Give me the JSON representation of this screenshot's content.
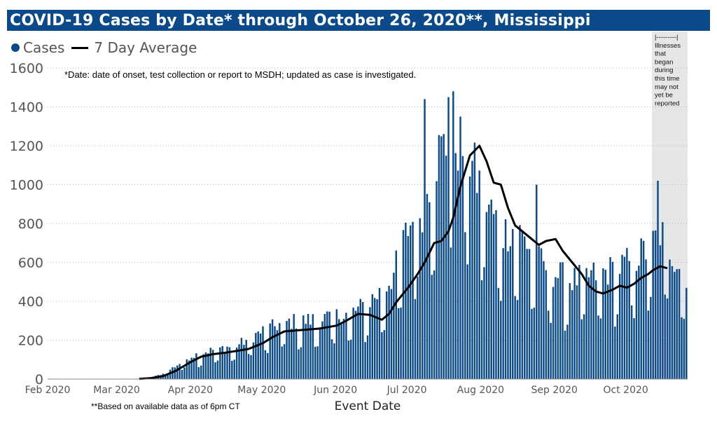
{
  "title": "COVID-19 Cases by Date* through October 26, 2020**, Mississippi",
  "legend": {
    "cases": "Cases",
    "avg": "7 Day Average"
  },
  "note_top": "*Date: date of onset, test collection or report to MSDH; updated as case is investigated.",
  "note_bottom": "**Based on available data as of 6pm CT",
  "shaded_note": [
    "|---------|",
    "Illnesses",
    "that",
    "began",
    "during",
    "this time",
    "may not",
    "yet be",
    "reported"
  ],
  "colors": {
    "bar": "#0b4a8a",
    "line": "#000000",
    "title_bg": "#0b4a8a",
    "shade": "#e6e6e6"
  },
  "chart_data": {
    "type": "bar",
    "xlabel": "Event Date",
    "ylabel": "",
    "ylim": [
      0,
      1600
    ],
    "y_ticks": [
      "0",
      "200",
      "400",
      "600",
      "800",
      "1000",
      "1200",
      "1400",
      "1600"
    ],
    "x_ticks": [
      "Feb 2020",
      "Mar 2020",
      "Apr 2020",
      "May 2020",
      "Jun 2020",
      "Jul 2020",
      "Aug 2020",
      "Sep 2020",
      "Oct 2020"
    ],
    "x_start": "2020-02-01",
    "x_end": "2020-10-26",
    "shaded_from": "2020-10-12",
    "grid": true,
    "legend_position": "top-left",
    "series": [
      {
        "name": "Cases",
        "kind": "bar",
        "anchors": [
          [
            "2020-02-01",
            0
          ],
          [
            "2020-03-10",
            2
          ],
          [
            "2020-03-15",
            8
          ],
          [
            "2020-03-20",
            25
          ],
          [
            "2020-03-25",
            60
          ],
          [
            "2020-04-01",
            110
          ],
          [
            "2020-04-10",
            140
          ],
          [
            "2020-04-20",
            160
          ],
          [
            "2020-05-01",
            230
          ],
          [
            "2020-05-10",
            270
          ],
          [
            "2020-05-20",
            280
          ],
          [
            "2020-06-01",
            300
          ],
          [
            "2020-06-10",
            330
          ],
          [
            "2020-06-20",
            420
          ],
          [
            "2020-06-25",
            500
          ],
          [
            "2020-07-01",
            720
          ],
          [
            "2020-07-07",
            820
          ],
          [
            "2020-07-12",
            1050
          ],
          [
            "2020-07-20",
            1150
          ],
          [
            "2020-07-25",
            1100
          ],
          [
            "2020-08-01",
            900
          ],
          [
            "2020-08-05",
            800
          ],
          [
            "2020-08-10",
            700
          ],
          [
            "2020-08-15",
            720
          ],
          [
            "2020-08-20",
            650
          ],
          [
            "2020-08-25",
            560
          ],
          [
            "2020-09-01",
            500
          ],
          [
            "2020-09-08",
            470
          ],
          [
            "2020-09-15",
            490
          ],
          [
            "2020-09-25",
            520
          ],
          [
            "2020-10-01",
            550
          ],
          [
            "2020-10-10",
            620
          ],
          [
            "2020-10-15",
            700
          ],
          [
            "2020-10-20",
            600
          ],
          [
            "2020-10-26",
            500
          ]
        ],
        "weekend_factor": 0.6,
        "peaks": [
          [
            "2020-07-08",
            1440
          ],
          [
            "2020-07-20",
            1480
          ],
          [
            "2020-07-18",
            1450
          ],
          [
            "2020-10-14",
            1020
          ],
          [
            "2020-08-24",
            1000
          ]
        ]
      },
      {
        "name": "7 Day Average",
        "kind": "line",
        "points": [
          [
            "2020-03-10",
            1
          ],
          [
            "2020-03-15",
            5
          ],
          [
            "2020-03-20",
            15
          ],
          [
            "2020-03-25",
            40
          ],
          [
            "2020-04-01",
            90
          ],
          [
            "2020-04-05",
            115
          ],
          [
            "2020-04-10",
            128
          ],
          [
            "2020-04-15",
            135
          ],
          [
            "2020-04-20",
            145
          ],
          [
            "2020-04-25",
            155
          ],
          [
            "2020-05-01",
            185
          ],
          [
            "2020-05-05",
            215
          ],
          [
            "2020-05-10",
            245
          ],
          [
            "2020-05-15",
            250
          ],
          [
            "2020-05-20",
            255
          ],
          [
            "2020-05-25",
            260
          ],
          [
            "2020-06-01",
            275
          ],
          [
            "2020-06-05",
            300
          ],
          [
            "2020-06-10",
            335
          ],
          [
            "2020-06-15",
            330
          ],
          [
            "2020-06-20",
            305
          ],
          [
            "2020-06-23",
            335
          ],
          [
            "2020-06-26",
            395
          ],
          [
            "2020-07-01",
            470
          ],
          [
            "2020-07-05",
            540
          ],
          [
            "2020-07-08",
            600
          ],
          [
            "2020-07-12",
            700
          ],
          [
            "2020-07-15",
            710
          ],
          [
            "2020-07-18",
            760
          ],
          [
            "2020-07-20",
            830
          ],
          [
            "2020-07-23",
            990
          ],
          [
            "2020-07-27",
            1150
          ],
          [
            "2020-07-31",
            1200
          ],
          [
            "2020-08-03",
            1120
          ],
          [
            "2020-08-06",
            1010
          ],
          [
            "2020-08-09",
            1000
          ],
          [
            "2020-08-12",
            880
          ],
          [
            "2020-08-15",
            790
          ],
          [
            "2020-08-18",
            760
          ],
          [
            "2020-08-22",
            720
          ],
          [
            "2020-08-25",
            690
          ],
          [
            "2020-08-28",
            710
          ],
          [
            "2020-09-01",
            720
          ],
          [
            "2020-09-04",
            660
          ],
          [
            "2020-09-08",
            600
          ],
          [
            "2020-09-12",
            540
          ],
          [
            "2020-09-15",
            480
          ],
          [
            "2020-09-18",
            450
          ],
          [
            "2020-09-21",
            440
          ],
          [
            "2020-09-25",
            460
          ],
          [
            "2020-09-28",
            480
          ],
          [
            "2020-10-01",
            470
          ],
          [
            "2020-10-04",
            490
          ],
          [
            "2020-10-07",
            520
          ],
          [
            "2020-10-10",
            540
          ],
          [
            "2020-10-12",
            560
          ],
          [
            "2020-10-15",
            580
          ],
          [
            "2020-10-18",
            570
          ]
        ]
      }
    ]
  }
}
